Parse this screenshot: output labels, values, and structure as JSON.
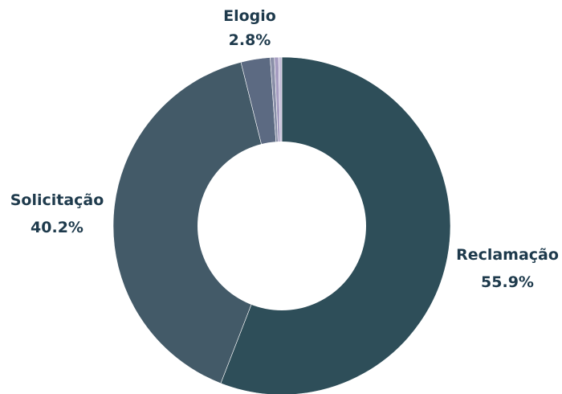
{
  "chart_data": {
    "type": "pie",
    "donut": true,
    "slices": [
      {
        "label": "Reclamação",
        "value": 55.9,
        "display": "55.9%",
        "color": "#2e4e59",
        "label_shown": true
      },
      {
        "label": "Solicitação",
        "value": 40.2,
        "display": "40.2%",
        "color": "#435a68",
        "label_shown": true
      },
      {
        "label": "Elogio",
        "value": 2.8,
        "display": "2.8%",
        "color": "#5c6a82",
        "label_shown": true
      },
      {
        "label": "",
        "value": 0.4,
        "display": "",
        "color": "#8a8fa8",
        "label_shown": false
      },
      {
        "label": "",
        "value": 0.4,
        "display": "",
        "color": "#a59cc0",
        "label_shown": false
      },
      {
        "label": "",
        "value": 0.3,
        "display": "",
        "color": "#c4bdd8",
        "label_shown": false
      }
    ]
  }
}
